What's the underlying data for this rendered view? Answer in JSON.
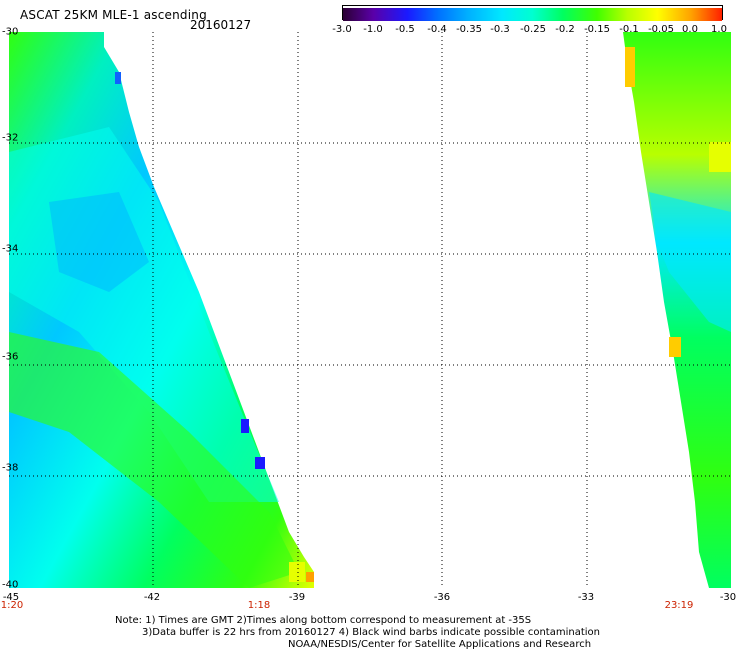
{
  "header": {
    "title": "ASCAT 25KM MLE-1 ascending",
    "date": "20160127"
  },
  "colorbar": {
    "ticks": [
      "-3.0",
      "-1.0",
      "-0.5",
      "-0.4",
      "-0.35",
      "-0.3",
      "-0.25",
      "-0.2",
      "-0.15",
      "-0.1",
      "-0.05",
      "0.0",
      "1.0"
    ],
    "colors": [
      "#2b0033",
      "#5a00a8",
      "#1a1aff",
      "#0070ff",
      "#00b0ff",
      "#00e8ff",
      "#00ffd0",
      "#00ff60",
      "#40ff00",
      "#b8ff00",
      "#ffff00",
      "#ffa000",
      "#ff2000"
    ]
  },
  "map": {
    "lat_labels": [
      "-30",
      "-32",
      "-34",
      "-36",
      "-38",
      "-40"
    ],
    "lon_labels": [
      "-45",
      "-42",
      "-39",
      "-36",
      "-33",
      "-30"
    ],
    "lat_range": [
      -40,
      -30
    ],
    "lon_range": [
      -45,
      -30
    ],
    "grid": "dotted",
    "colors": {
      "mle_cyan": "#00ffee",
      "mle_teal": "#00f0c0",
      "mle_green": "#00ff60",
      "mle_lime": "#30ff10",
      "mle_blue": "#00c8ff",
      "mle_deep_blue": "#1a1aff",
      "mle_yellow": "#e6ff00",
      "mle_orange": "#ffa000"
    }
  },
  "times": {
    "left": "1:20",
    "middle": "1:18",
    "right": "23:19"
  },
  "notes": {
    "line1": "Note: 1) Times are GMT 2)Times along bottom correspond to measurement at -35S",
    "line2": "3)Data buffer is 22 hrs from 20160127 4) Black wind barbs indicate possible contamination",
    "line3": "NOAA/NESDIS/Center for Satellite Applications and Research"
  }
}
